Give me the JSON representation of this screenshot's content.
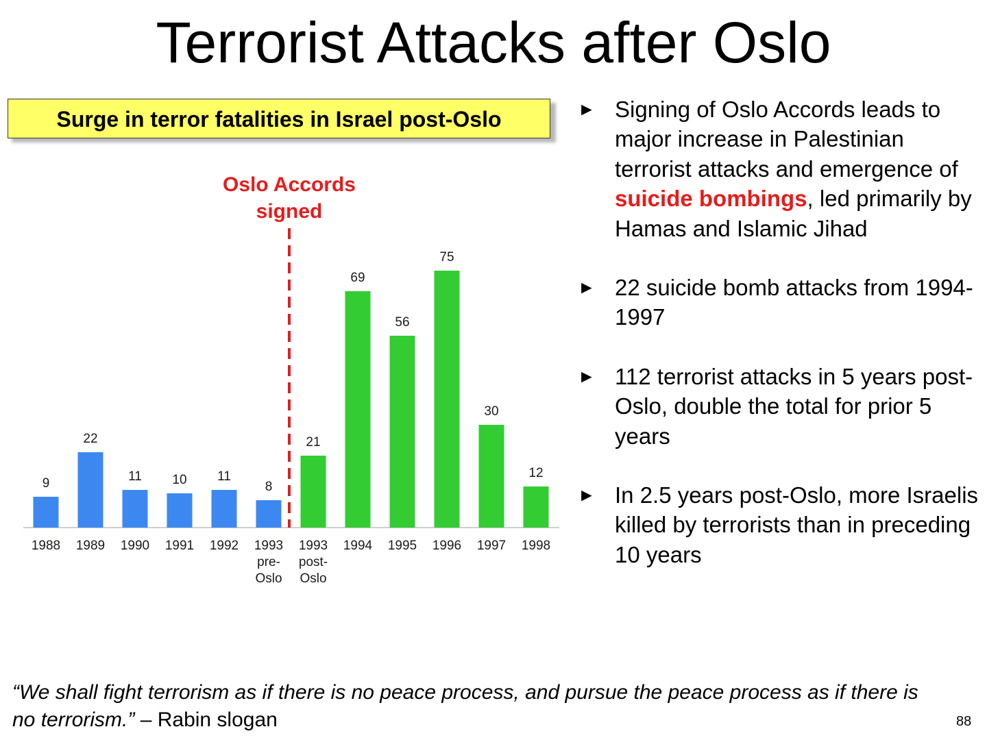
{
  "title": "Terrorist Attacks after Oslo",
  "banner": "Surge in terror fatalities in Israel post-Oslo",
  "annotation": {
    "line1": "Oslo Accords",
    "line2": "signed"
  },
  "colors": {
    "pre_oslo": "#3c88f0",
    "post_oslo": "#33cc33",
    "highlight": "#e61c1c",
    "banner": "#ffff66"
  },
  "chart_data": {
    "type": "bar",
    "title": "Surge in terror fatalities in Israel post-Oslo",
    "xlabel": "",
    "ylabel": "",
    "ylim": [
      0,
      80
    ],
    "grid": false,
    "categories": [
      [
        "1988"
      ],
      [
        "1989"
      ],
      [
        "1990"
      ],
      [
        "1991"
      ],
      [
        "1992"
      ],
      [
        "1993",
        "pre-",
        "Oslo"
      ],
      [
        "1993",
        "post-",
        "Oslo"
      ],
      [
        "1994"
      ],
      [
        "1995"
      ],
      [
        "1996"
      ],
      [
        "1997"
      ],
      [
        "1998"
      ]
    ],
    "values": [
      9,
      22,
      11,
      10,
      11,
      8,
      21,
      69,
      56,
      75,
      30,
      12
    ],
    "groups": [
      "pre",
      "pre",
      "pre",
      "pre",
      "pre",
      "pre",
      "post",
      "post",
      "post",
      "post",
      "post",
      "post"
    ],
    "annotations": [
      {
        "text": "Oslo Accords signed",
        "between": [
          "1993 pre-Oslo",
          "1993 post-Oslo"
        ],
        "style": "dashed vertical line"
      }
    ]
  },
  "bullets": [
    {
      "parts": [
        {
          "text": "Signing of Oslo Accords leads to major increase in Palestinian terrorist attacks and emergence of "
        },
        {
          "text": "suicide bombings",
          "highlight": true
        },
        {
          "text": ", led primarily by Hamas and Islamic Jihad"
        }
      ]
    },
    {
      "parts": [
        {
          "text": "22 suicide bomb attacks from 1994-1997"
        }
      ]
    },
    {
      "parts": [
        {
          "text": "112 terrorist attacks in 5 years post-Oslo, double the total for prior 5 years"
        }
      ]
    },
    {
      "parts": [
        {
          "text": "In 2.5 years post-Oslo, more Israelis killed by terrorists than in preceding 10 years"
        }
      ]
    }
  ],
  "bullet_marker": "►",
  "quote": {
    "italic": "“We shall fight terrorism as if there is no peace process, and pursue the peace process as if there is no terrorism.”",
    "attribution": " – Rabin slogan"
  },
  "page_number": "88"
}
